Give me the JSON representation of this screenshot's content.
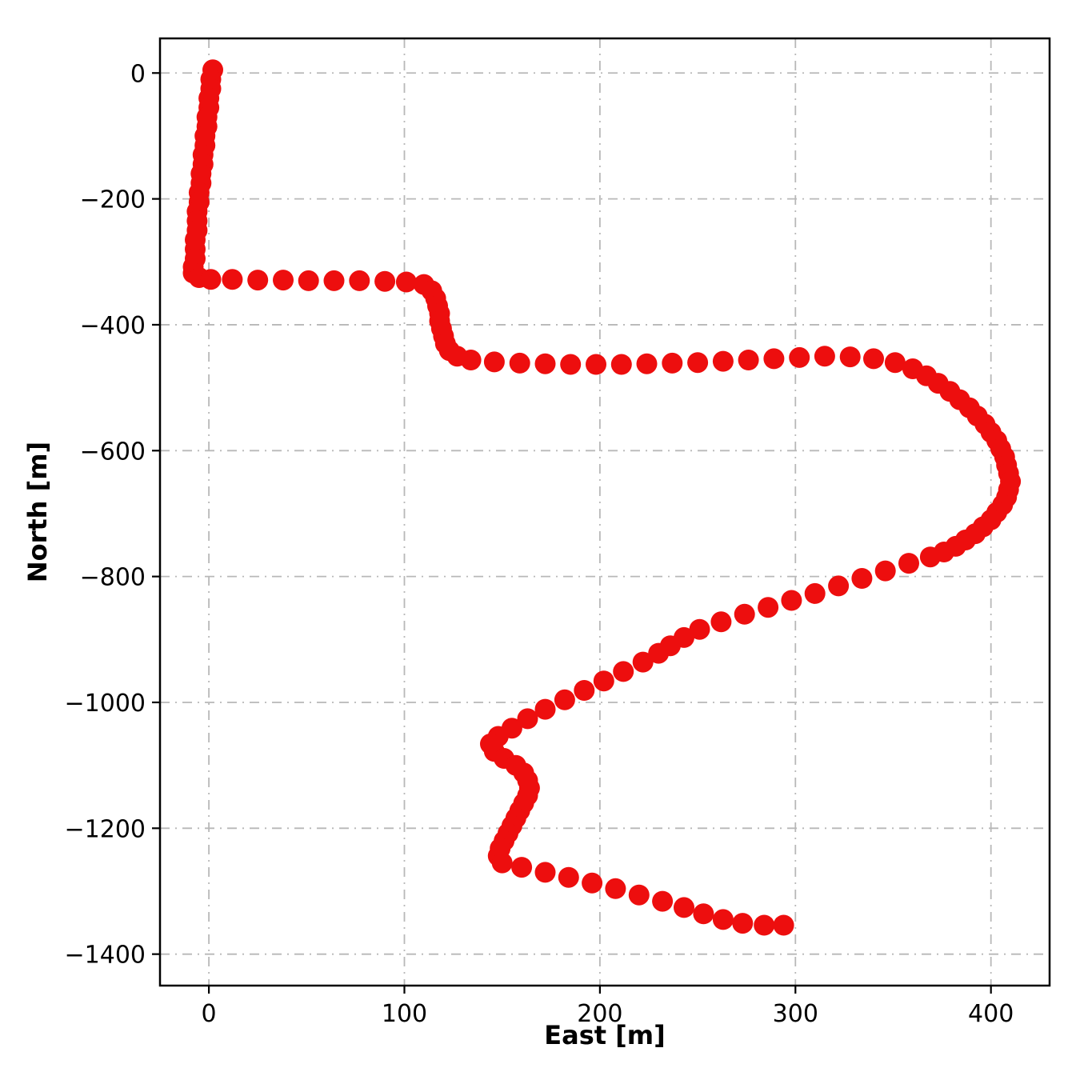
{
  "figure": {
    "background": "#ffffff"
  },
  "chart_data": {
    "type": "scatter",
    "title": "",
    "xlabel": "East [m]",
    "ylabel": "North [m]",
    "xlim": [
      -25,
      430
    ],
    "ylim": [
      -1450,
      55
    ],
    "xticks": [
      0,
      100,
      200,
      300,
      400
    ],
    "yticks": [
      0,
      -200,
      -400,
      -600,
      -800,
      -1000,
      -1200,
      -1400
    ],
    "grid": "dash-dot",
    "grid_color": "#b8b8b8",
    "marker_color": "#ed0e0e",
    "marker_radius_px": 13,
    "legend": "none",
    "points": [
      [
        2,
        5
      ],
      [
        1,
        -10
      ],
      [
        1,
        -25
      ],
      [
        0,
        -40
      ],
      [
        0,
        -55
      ],
      [
        -1,
        -70
      ],
      [
        -1,
        -85
      ],
      [
        -2,
        -100
      ],
      [
        -2,
        -115
      ],
      [
        -3,
        -130
      ],
      [
        -3,
        -145
      ],
      [
        -4,
        -160
      ],
      [
        -4,
        -175
      ],
      [
        -5,
        -190
      ],
      [
        -5,
        -205
      ],
      [
        -6,
        -220
      ],
      [
        -6,
        -235
      ],
      [
        -6,
        -250
      ],
      [
        -7,
        -265
      ],
      [
        -7,
        -280
      ],
      [
        -7,
        -295
      ],
      [
        -8,
        -308
      ],
      [
        -8,
        -318
      ],
      [
        -5,
        -325
      ],
      [
        1,
        -328
      ],
      [
        12,
        -328
      ],
      [
        25,
        -329
      ],
      [
        38,
        -329
      ],
      [
        51,
        -330
      ],
      [
        64,
        -330
      ],
      [
        77,
        -330
      ],
      [
        90,
        -331
      ],
      [
        101,
        -332
      ],
      [
        110,
        -336
      ],
      [
        114,
        -346
      ],
      [
        116,
        -358
      ],
      [
        117,
        -370
      ],
      [
        118,
        -382
      ],
      [
        118,
        -394
      ],
      [
        119,
        -406
      ],
      [
        120,
        -418
      ],
      [
        121,
        -430
      ],
      [
        123,
        -441
      ],
      [
        127,
        -450
      ],
      [
        134,
        -456
      ],
      [
        146,
        -459
      ],
      [
        159,
        -461
      ],
      [
        172,
        -462
      ],
      [
        185,
        -463
      ],
      [
        198,
        -463
      ],
      [
        211,
        -463
      ],
      [
        224,
        -462
      ],
      [
        237,
        -461
      ],
      [
        250,
        -460
      ],
      [
        263,
        -458
      ],
      [
        276,
        -456
      ],
      [
        289,
        -454
      ],
      [
        302,
        -452
      ],
      [
        315,
        -450
      ],
      [
        328,
        -451
      ],
      [
        340,
        -454
      ],
      [
        351,
        -460
      ],
      [
        360,
        -470
      ],
      [
        367,
        -481
      ],
      [
        373,
        -493
      ],
      [
        379,
        -506
      ],
      [
        384,
        -519
      ],
      [
        389,
        -532
      ],
      [
        393,
        -545
      ],
      [
        397,
        -558
      ],
      [
        400,
        -571
      ],
      [
        403,
        -584
      ],
      [
        405,
        -597
      ],
      [
        407,
        -610
      ],
      [
        408,
        -623
      ],
      [
        409,
        -636
      ],
      [
        410,
        -649
      ],
      [
        409,
        -662
      ],
      [
        408,
        -674
      ],
      [
        406,
        -686
      ],
      [
        403,
        -698
      ],
      [
        400,
        -710
      ],
      [
        396,
        -721
      ],
      [
        392,
        -732
      ],
      [
        387,
        -742
      ],
      [
        382,
        -752
      ],
      [
        376,
        -761
      ],
      [
        369,
        -769
      ],
      [
        358,
        -779
      ],
      [
        346,
        -791
      ],
      [
        334,
        -803
      ],
      [
        322,
        -815
      ],
      [
        310,
        -827
      ],
      [
        298,
        -838
      ],
      [
        286,
        -849
      ],
      [
        274,
        -860
      ],
      [
        262,
        -872
      ],
      [
        251,
        -884
      ],
      [
        243,
        -897
      ],
      [
        236,
        -910
      ],
      [
        230,
        -922
      ],
      [
        222,
        -936
      ],
      [
        212,
        -951
      ],
      [
        202,
        -966
      ],
      [
        192,
        -981
      ],
      [
        182,
        -996
      ],
      [
        172,
        -1011
      ],
      [
        163,
        -1026
      ],
      [
        155,
        -1041
      ],
      [
        148,
        -1054
      ],
      [
        144,
        -1066
      ],
      [
        146,
        -1078
      ],
      [
        151,
        -1089
      ],
      [
        157,
        -1100
      ],
      [
        161,
        -1112
      ],
      [
        163,
        -1124
      ],
      [
        164,
        -1136
      ],
      [
        163,
        -1148
      ],
      [
        161,
        -1160
      ],
      [
        159,
        -1172
      ],
      [
        157,
        -1184
      ],
      [
        155,
        -1196
      ],
      [
        153,
        -1208
      ],
      [
        151,
        -1220
      ],
      [
        149,
        -1232
      ],
      [
        148,
        -1244
      ],
      [
        150,
        -1255
      ],
      [
        160,
        -1262
      ],
      [
        172,
        -1270
      ],
      [
        184,
        -1278
      ],
      [
        196,
        -1287
      ],
      [
        208,
        -1296
      ],
      [
        220,
        -1306
      ],
      [
        232,
        -1316
      ],
      [
        243,
        -1326
      ],
      [
        253,
        -1336
      ],
      [
        263,
        -1345
      ],
      [
        273,
        -1351
      ],
      [
        284,
        -1354
      ],
      [
        294,
        -1354
      ]
    ]
  }
}
